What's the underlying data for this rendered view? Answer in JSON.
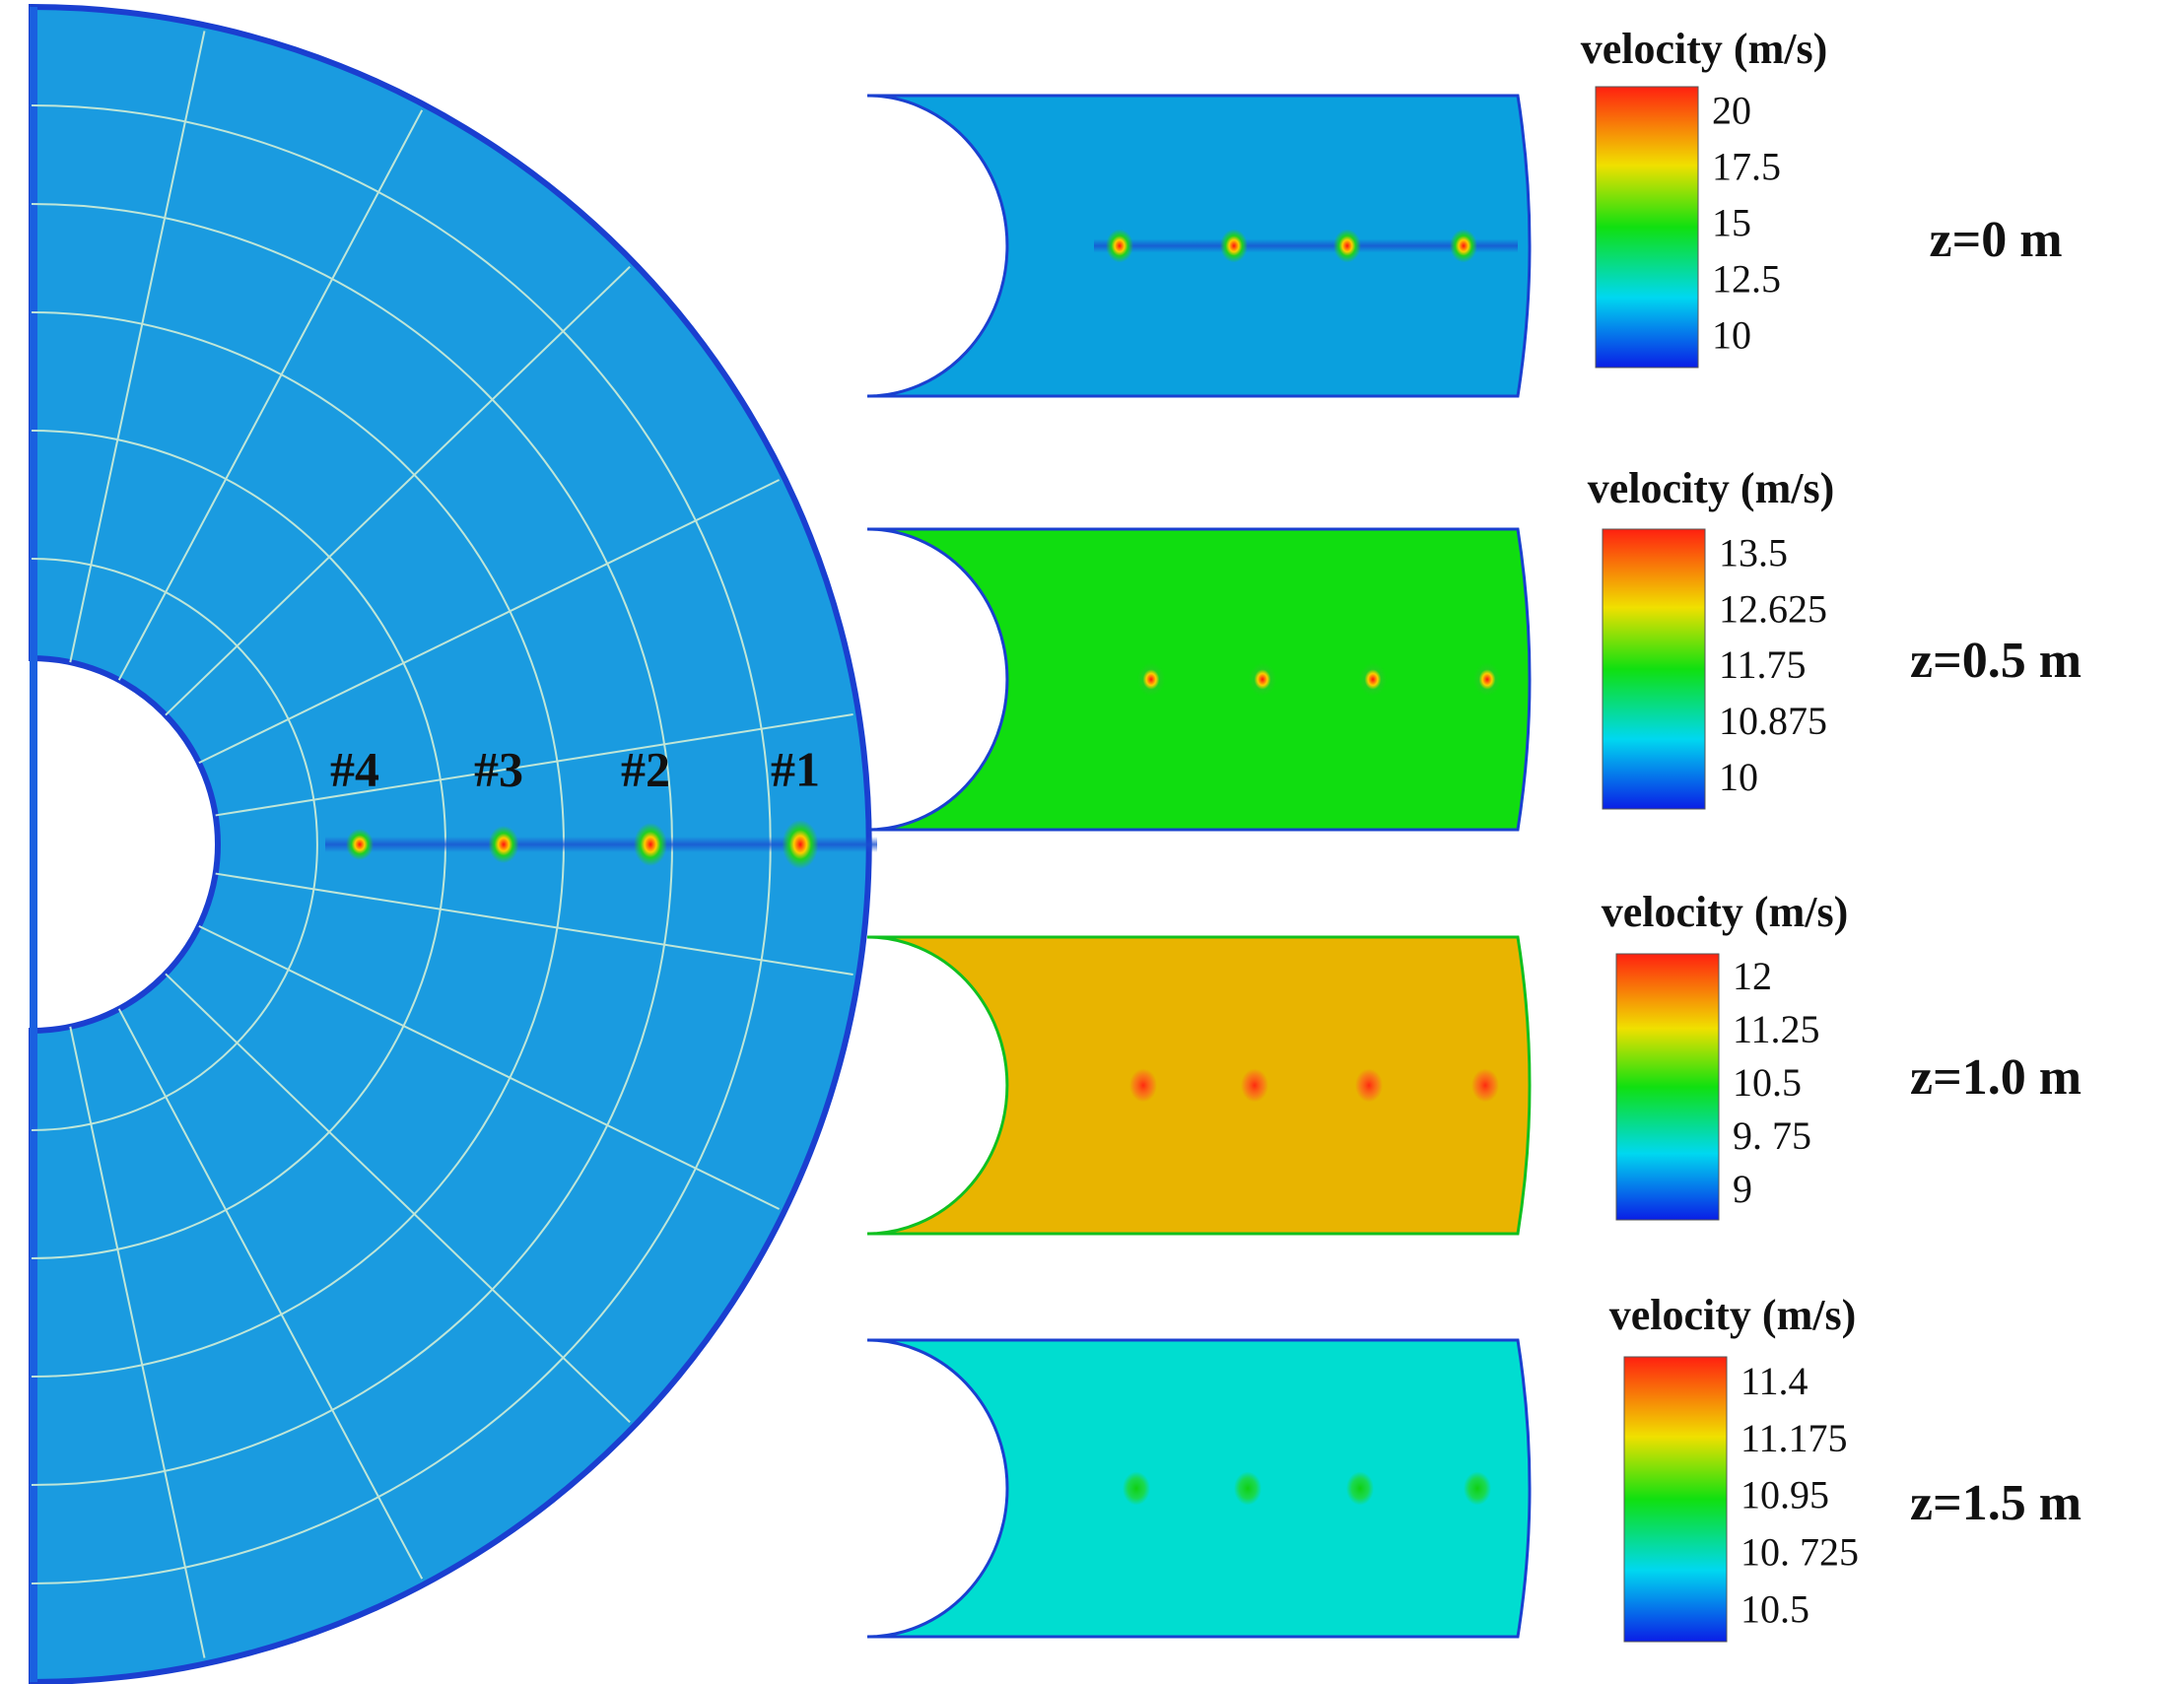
{
  "main": {
    "probe_labels": [
      "#4",
      "#3",
      "#2",
      "#1"
    ]
  },
  "panels": [
    {
      "legend_title": "velocity (m/s)",
      "ticks": [
        "20",
        "17.5",
        "15",
        "12.5",
        "10"
      ],
      "z_label": "z=0 m"
    },
    {
      "legend_title": "velocity (m/s)",
      "ticks": [
        "13.5",
        "12.625",
        "11.75",
        "10.875",
        "10"
      ],
      "z_label": "z=0.5 m"
    },
    {
      "legend_title": "velocity (m/s)",
      "ticks": [
        "12",
        "11.25",
        "10.5",
        "9. 75",
        "9"
      ],
      "z_label": "z=1.0 m"
    },
    {
      "legend_title": "velocity (m/s)",
      "ticks": [
        "11.4",
        "11.175",
        "10.95",
        "10. 725",
        "10.5"
      ],
      "z_label": "z=1.5 m"
    }
  ]
}
